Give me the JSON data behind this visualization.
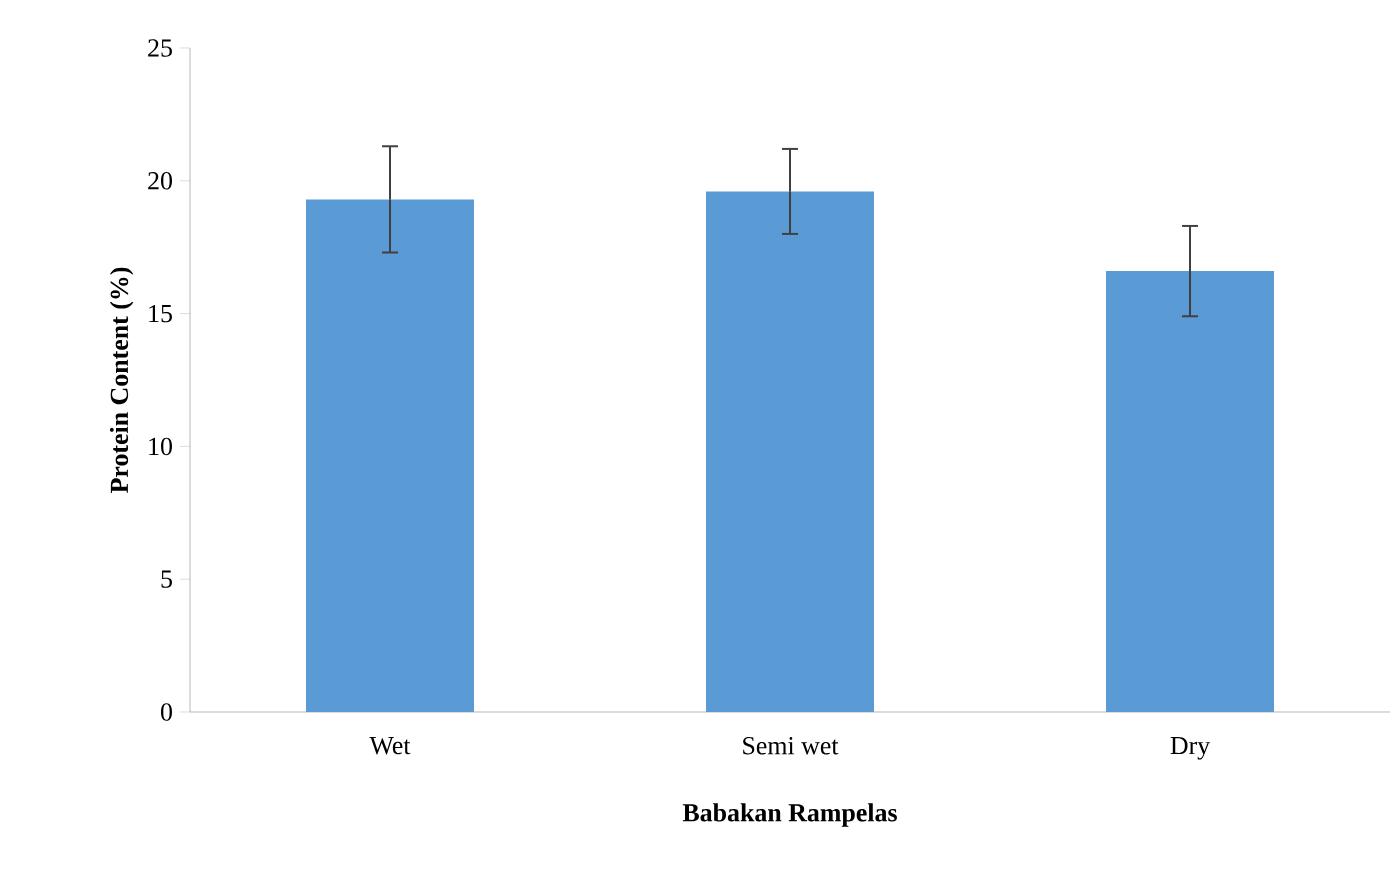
{
  "chart_data": {
    "type": "bar",
    "xlabel": "Babakan Rampelas",
    "ylabel": "Protein Content (%)",
    "categories": [
      "Wet",
      "Semi wet",
      "Dry"
    ],
    "values": [
      19.3,
      19.6,
      16.6
    ],
    "errors": [
      2.0,
      1.6,
      1.7
    ],
    "color": "#5b9bd5",
    "ylim": [
      0,
      25
    ],
    "yticks": [
      0,
      5,
      10,
      15,
      20,
      25
    ],
    "grid": false
  }
}
